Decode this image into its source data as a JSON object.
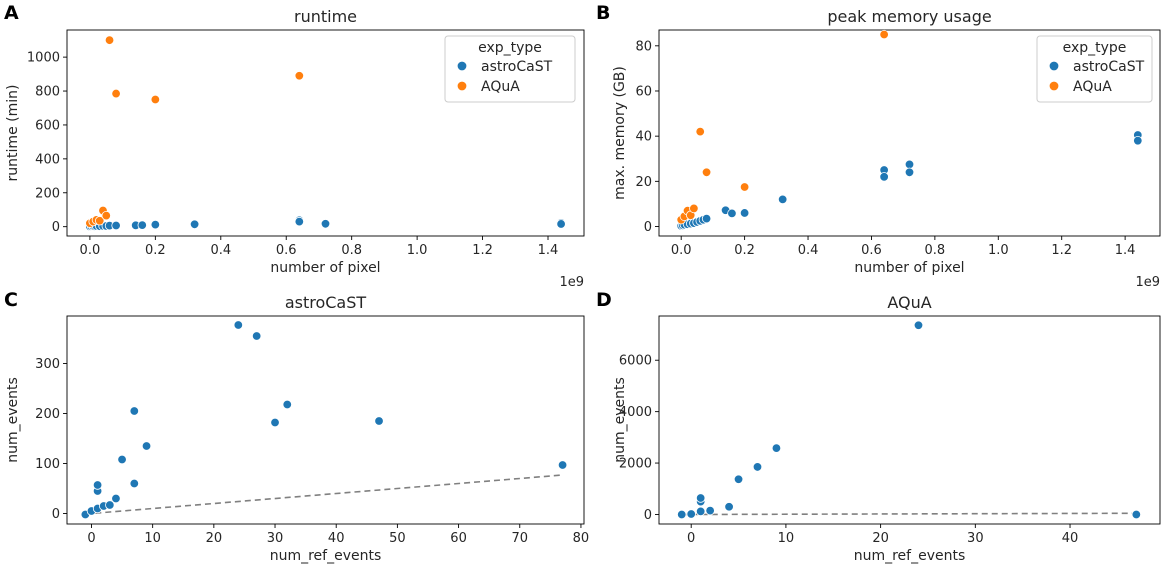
{
  "chart_data": [
    {
      "panel": "A",
      "type": "scatter",
      "title": "runtime",
      "xlabel": "number of pixel",
      "ylabel": "runtime (min)",
      "x_offset_label": "1e9",
      "xlim": [
        -0.07,
        1.51
      ],
      "ylim": [
        -55,
        1160
      ],
      "xticks": [
        0.0,
        0.2,
        0.4,
        0.6,
        0.8,
        1.0,
        1.2,
        1.4
      ],
      "xtick_labels": [
        "0.0",
        "0.2",
        "0.4",
        "0.6",
        "0.8",
        "1.0",
        "1.2",
        "1.4"
      ],
      "yticks": [
        0,
        200,
        400,
        600,
        800,
        1000
      ],
      "ytick_labels": [
        "0",
        "200",
        "400",
        "600",
        "800",
        "1000"
      ],
      "legend": {
        "title": "exp_type",
        "position": "upper-right"
      },
      "series": [
        {
          "name": "astroCaST",
          "color": "#1f77b4",
          "x": [
            0.0,
            0.005,
            0.01,
            0.015,
            0.02,
            0.03,
            0.04,
            0.05,
            0.06,
            0.08,
            0.14,
            0.16,
            0.2,
            0.32,
            0.64,
            0.64,
            0.72,
            1.44,
            1.44
          ],
          "y": [
            1,
            2,
            3,
            2,
            4,
            3,
            5,
            4,
            6,
            7,
            8,
            9,
            12,
            14,
            38,
            30,
            17,
            22,
            16
          ]
        },
        {
          "name": "AQuA",
          "color": "#ff7f0e",
          "x": [
            0.0,
            0.01,
            0.02,
            0.03,
            0.04,
            0.05,
            0.06,
            0.08,
            0.2,
            0.64
          ],
          "y": [
            20,
            30,
            40,
            35,
            95,
            65,
            1100,
            785,
            750,
            890
          ]
        }
      ]
    },
    {
      "panel": "B",
      "type": "scatter",
      "title": "peak memory usage",
      "xlabel": "number of pixel",
      "ylabel": "max. memory (GB)",
      "x_offset_label": "1e9",
      "xlim": [
        -0.07,
        1.51
      ],
      "ylim": [
        -4.2,
        87
      ],
      "xticks": [
        0.0,
        0.2,
        0.4,
        0.6,
        0.8,
        1.0,
        1.2,
        1.4
      ],
      "xtick_labels": [
        "0.0",
        "0.2",
        "0.4",
        "0.6",
        "0.8",
        "1.0",
        "1.2",
        "1.4"
      ],
      "yticks": [
        0,
        20,
        40,
        60,
        80
      ],
      "ytick_labels": [
        "0",
        "20",
        "40",
        "60",
        "80"
      ],
      "legend": {
        "title": "exp_type",
        "position": "upper-right"
      },
      "series": [
        {
          "name": "astroCaST",
          "color": "#1f77b4",
          "x": [
            0.0,
            0.005,
            0.01,
            0.02,
            0.03,
            0.04,
            0.05,
            0.06,
            0.07,
            0.08,
            0.14,
            0.16,
            0.2,
            0.32,
            0.64,
            0.64,
            0.72,
            0.72,
            1.44,
            1.44
          ],
          "y": [
            0.3,
            0.5,
            0.8,
            1.0,
            1.3,
            1.5,
            2.0,
            2.5,
            3.0,
            3.5,
            7.2,
            5.8,
            6.0,
            12.0,
            25.0,
            22.0,
            27.5,
            24.0,
            40.5,
            38.0
          ],
          "point_labels": []
        },
        {
          "name": "AQuA",
          "color": "#ff7f0e",
          "x": [
            0.0,
            0.01,
            0.02,
            0.03,
            0.04,
            0.06,
            0.08,
            0.2,
            0.64
          ],
          "y": [
            3.0,
            4.5,
            7.0,
            5.0,
            8.0,
            42.0,
            24.0,
            17.5,
            85.0
          ]
        }
      ]
    },
    {
      "panel": "C",
      "type": "scatter",
      "title": "astroCaST",
      "xlabel": "num_ref_events",
      "ylabel": "num_events",
      "xlim": [
        -4,
        80.5
      ],
      "ylim": [
        -21,
        395
      ],
      "xticks": [
        0,
        10,
        20,
        30,
        40,
        50,
        60,
        70,
        80
      ],
      "xtick_labels": [
        "0",
        "10",
        "20",
        "30",
        "40",
        "50",
        "60",
        "70",
        "80"
      ],
      "yticks": [
        0,
        100,
        200,
        300
      ],
      "ytick_labels": [
        "0",
        "100",
        "200",
        "300"
      ],
      "reference_line": {
        "style": "dashed",
        "color": "#808080",
        "x": [
          -1,
          77
        ],
        "y": [
          -1,
          77
        ]
      },
      "series": [
        {
          "name": "astroCaST",
          "color": "#1f77b4",
          "x": [
            -1,
            0,
            1,
            1,
            1,
            2,
            3,
            4,
            5,
            7,
            7,
            9,
            24,
            27,
            30,
            32,
            47,
            77
          ],
          "y": [
            -2,
            5,
            10,
            45,
            57,
            15,
            17,
            30,
            108,
            60,
            205,
            135,
            377,
            355,
            182,
            218,
            185,
            97
          ]
        }
      ]
    },
    {
      "panel": "D",
      "type": "scatter",
      "title": "AQuA",
      "xlabel": "num_ref_events",
      "ylabel": "num_events",
      "xlim": [
        -3.4,
        49.5
      ],
      "ylim": [
        -370,
        7720
      ],
      "xticks": [
        0,
        10,
        20,
        30,
        40
      ],
      "xtick_labels": [
        "0",
        "10",
        "20",
        "30",
        "40"
      ],
      "yticks": [
        0,
        2000,
        4000,
        6000
      ],
      "ytick_labels": [
        "0",
        "2000",
        "4000",
        "6000"
      ],
      "reference_line": {
        "style": "dashed",
        "color": "#808080",
        "x": [
          -1,
          47
        ],
        "y": [
          -1,
          47
        ]
      },
      "series": [
        {
          "name": "AQuA",
          "color": "#1f77b4",
          "x": [
            -1,
            0,
            1,
            1,
            1,
            2,
            4,
            5,
            7,
            9,
            24,
            47
          ],
          "y": [
            0,
            20,
            120,
            500,
            640,
            150,
            300,
            1370,
            1850,
            2580,
            7360,
            0
          ]
        }
      ]
    }
  ]
}
